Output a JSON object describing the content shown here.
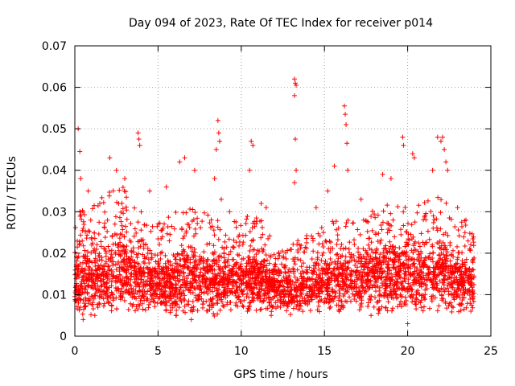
{
  "chart_data": {
    "type": "scatter",
    "title": "Day 094 of 2023, Rate Of TEC Index for receiver p014",
    "xlabel": "GPS time / hours",
    "ylabel": "ROTI / TECUs",
    "xlim": [
      0,
      25
    ],
    "ylim": [
      0,
      0.07
    ],
    "xticks": [
      0,
      5,
      10,
      15,
      20,
      25
    ],
    "xtick_labels": [
      "0",
      "5",
      "10",
      "15",
      "20",
      "25"
    ],
    "yticks": [
      0,
      0.01,
      0.02,
      0.03,
      0.04,
      0.05,
      0.06,
      0.07
    ],
    "ytick_labels": [
      "0",
      "0.01",
      "0.02",
      "0.03",
      "0.04",
      "0.05",
      "0.06",
      "0.07"
    ],
    "grid": true,
    "marker": "plus",
    "marker_color": "#ff0000",
    "data_span_hours": [
      0,
      24
    ],
    "series": [
      {
        "name": "p014",
        "points": [
          {
            "x": 0.2,
            "y": 0.05
          },
          {
            "x": 0.3,
            "y": 0.0445
          },
          {
            "x": 0.35,
            "y": 0.038
          },
          {
            "x": 0.8,
            "y": 0.035
          },
          {
            "x": 1.5,
            "y": 0.032
          },
          {
            "x": 2.1,
            "y": 0.043
          },
          {
            "x": 2.5,
            "y": 0.04
          },
          {
            "x": 3.0,
            "y": 0.038
          },
          {
            "x": 3.8,
            "y": 0.049
          },
          {
            "x": 3.85,
            "y": 0.0475
          },
          {
            "x": 3.9,
            "y": 0.046
          },
          {
            "x": 4.5,
            "y": 0.035
          },
          {
            "x": 5.5,
            "y": 0.036
          },
          {
            "x": 6.3,
            "y": 0.042
          },
          {
            "x": 6.6,
            "y": 0.043
          },
          {
            "x": 7.2,
            "y": 0.04
          },
          {
            "x": 8.6,
            "y": 0.052
          },
          {
            "x": 8.65,
            "y": 0.049
          },
          {
            "x": 8.7,
            "y": 0.047
          },
          {
            "x": 8.5,
            "y": 0.045
          },
          {
            "x": 8.4,
            "y": 0.038
          },
          {
            "x": 8.8,
            "y": 0.033
          },
          {
            "x": 9.3,
            "y": 0.03
          },
          {
            "x": 10.6,
            "y": 0.047
          },
          {
            "x": 10.7,
            "y": 0.046
          },
          {
            "x": 10.5,
            "y": 0.04
          },
          {
            "x": 11.2,
            "y": 0.032
          },
          {
            "x": 11.5,
            "y": 0.031
          },
          {
            "x": 13.2,
            "y": 0.062
          },
          {
            "x": 13.25,
            "y": 0.061
          },
          {
            "x": 13.3,
            "y": 0.0605
          },
          {
            "x": 13.2,
            "y": 0.058
          },
          {
            "x": 13.25,
            "y": 0.0475
          },
          {
            "x": 13.3,
            "y": 0.04
          },
          {
            "x": 13.2,
            "y": 0.037
          },
          {
            "x": 14.5,
            "y": 0.031
          },
          {
            "x": 15.2,
            "y": 0.035
          },
          {
            "x": 15.6,
            "y": 0.041
          },
          {
            "x": 16.2,
            "y": 0.0555
          },
          {
            "x": 16.25,
            "y": 0.0535
          },
          {
            "x": 16.3,
            "y": 0.051
          },
          {
            "x": 16.35,
            "y": 0.0465
          },
          {
            "x": 16.4,
            "y": 0.04
          },
          {
            "x": 17.2,
            "y": 0.033
          },
          {
            "x": 18.5,
            "y": 0.039
          },
          {
            "x": 19.0,
            "y": 0.038
          },
          {
            "x": 19.7,
            "y": 0.048
          },
          {
            "x": 19.75,
            "y": 0.046
          },
          {
            "x": 20.3,
            "y": 0.044
          },
          {
            "x": 20.4,
            "y": 0.043
          },
          {
            "x": 20.0,
            "y": 0.003
          },
          {
            "x": 21.5,
            "y": 0.04
          },
          {
            "x": 21.8,
            "y": 0.048
          },
          {
            "x": 22.0,
            "y": 0.047
          },
          {
            "x": 22.1,
            "y": 0.048
          },
          {
            "x": 22.2,
            "y": 0.045
          },
          {
            "x": 22.3,
            "y": 0.042
          },
          {
            "x": 22.4,
            "y": 0.04
          },
          {
            "x": 23.0,
            "y": 0.031
          },
          {
            "x": 23.5,
            "y": 0.028
          },
          {
            "x": 0.5,
            "y": 0.004
          },
          {
            "x": 1.2,
            "y": 0.005
          },
          {
            "x": 6.1,
            "y": 0.005
          },
          {
            "x": 7.0,
            "y": 0.004
          },
          {
            "x": 11.8,
            "y": 0.005
          },
          {
            "x": 17.8,
            "y": 0.005
          },
          {
            "x": 23.8,
            "y": 0.006
          }
        ],
        "envelope_hourly": {
          "hours": [
            0,
            1,
            2,
            3,
            4,
            5,
            6,
            7,
            8,
            9,
            10,
            11,
            12,
            13,
            14,
            15,
            16,
            17,
            18,
            19,
            20,
            21,
            22,
            23,
            24
          ],
          "median": [
            0.013,
            0.014,
            0.015,
            0.016,
            0.014,
            0.013,
            0.013,
            0.014,
            0.013,
            0.013,
            0.014,
            0.014,
            0.012,
            0.011,
            0.012,
            0.013,
            0.014,
            0.014,
            0.015,
            0.015,
            0.015,
            0.016,
            0.016,
            0.014,
            0.012
          ],
          "upper": [
            0.03,
            0.031,
            0.035,
            0.036,
            0.03,
            0.028,
            0.03,
            0.031,
            0.03,
            0.027,
            0.029,
            0.031,
            0.022,
            0.022,
            0.025,
            0.027,
            0.029,
            0.027,
            0.031,
            0.032,
            0.031,
            0.033,
            0.034,
            0.03,
            0.025
          ],
          "lower": [
            0.006,
            0.006,
            0.006,
            0.006,
            0.006,
            0.006,
            0.006,
            0.006,
            0.006,
            0.006,
            0.006,
            0.006,
            0.006,
            0.006,
            0.006,
            0.006,
            0.006,
            0.006,
            0.006,
            0.006,
            0.006,
            0.006,
            0.006,
            0.006,
            0.006
          ]
        }
      }
    ]
  }
}
